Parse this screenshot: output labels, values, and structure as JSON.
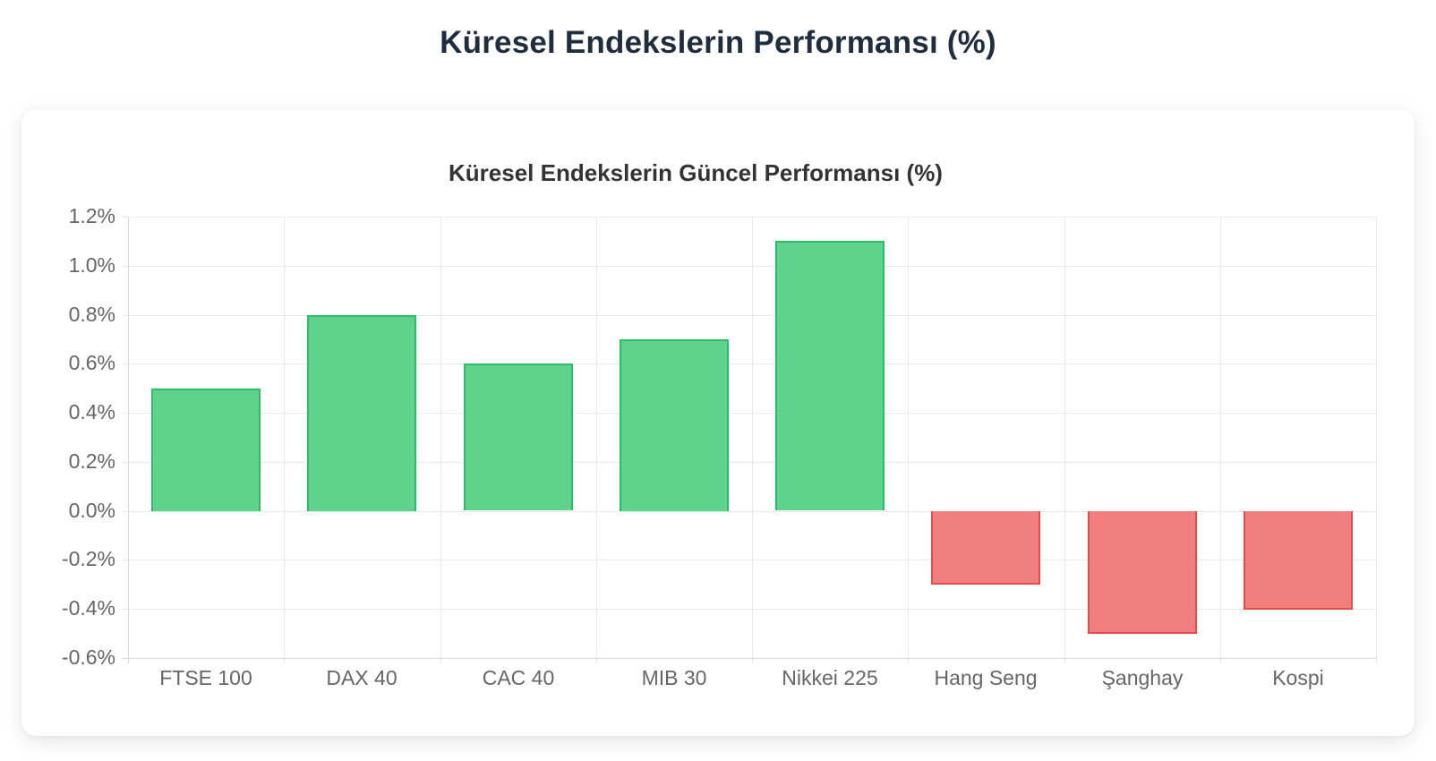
{
  "page_title": "Küresel Endekslerin Performansı (%)",
  "chart_data": {
    "type": "bar",
    "title": "Küresel Endekslerin Güncel Performansı (%)",
    "categories": [
      "FTSE 100",
      "DAX 40",
      "CAC 40",
      "MIB 30",
      "Nikkei 225",
      "Hang Seng",
      "Şanghay",
      "Kospi"
    ],
    "values": [
      0.5,
      0.8,
      0.6,
      0.7,
      1.1,
      -0.3,
      -0.5,
      -0.4
    ],
    "value_unit": "%",
    "xlabel": "",
    "ylabel": "",
    "ylim": [
      -0.6,
      1.2
    ],
    "ytick_step": 0.2,
    "ytick_labels": [
      "1.2%",
      "1.0%",
      "0.8%",
      "0.6%",
      "0.4%",
      "0.2%",
      "0.0%",
      "-0.2%",
      "-0.4%",
      "-0.6%"
    ],
    "grid": true,
    "legend_position": "none",
    "colors": {
      "positive_fill": "#5fd38b",
      "positive_border": "#2abf66",
      "negative_fill": "#f27f80",
      "negative_border": "#e94b4d",
      "gridline": "#e9e9e9",
      "axis_border": "#d9d9d9",
      "tick_text": "#666666",
      "chart_title_text": "#333333",
      "page_title_text": "#1f2d3d"
    }
  }
}
